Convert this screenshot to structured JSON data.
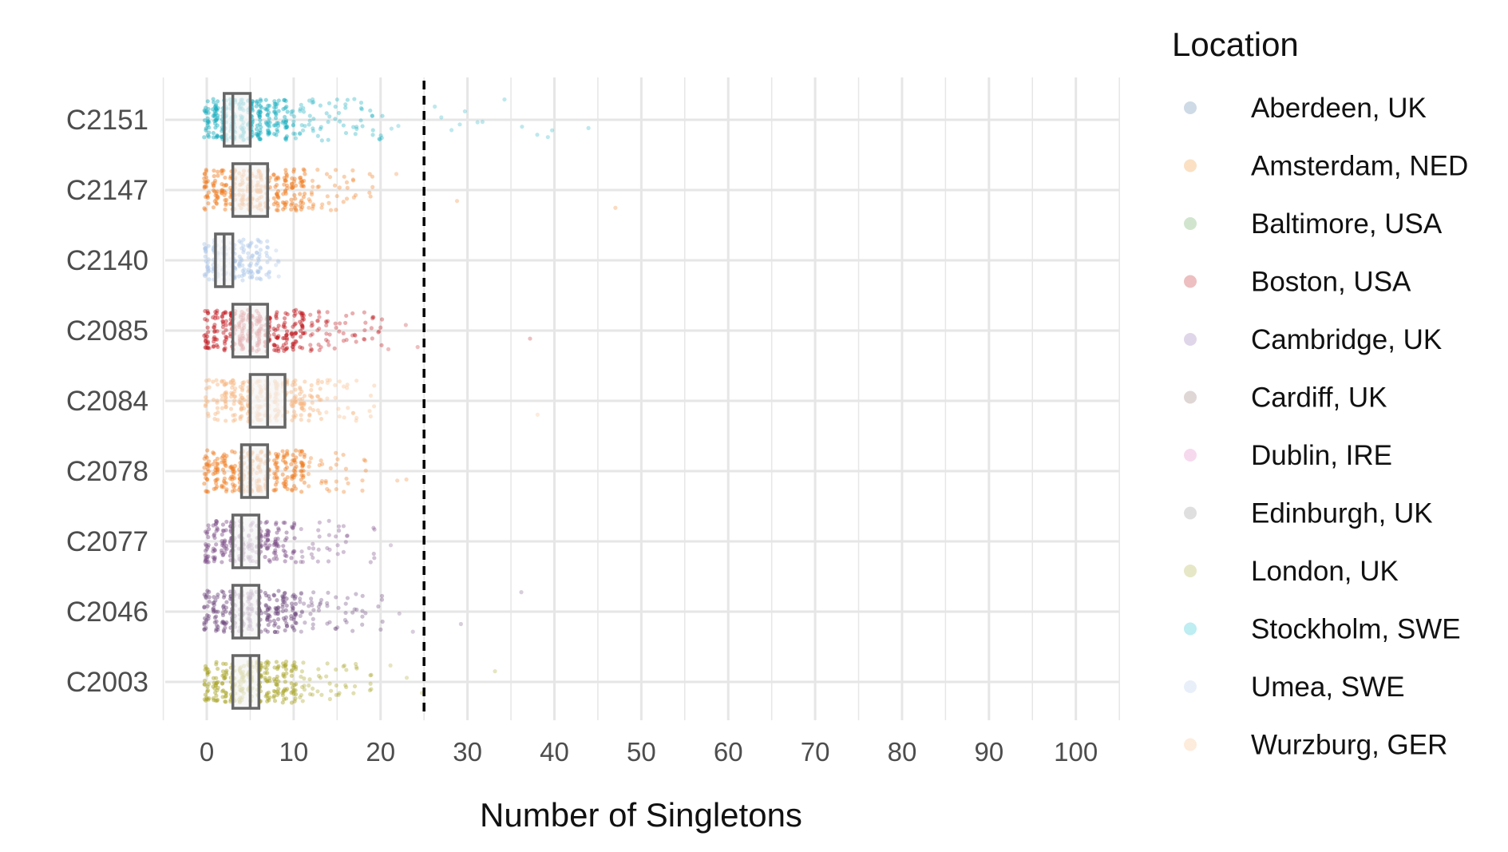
{
  "chart_data": {
    "type": "scatter",
    "subtype": "jittered strip plot with boxplots",
    "xlabel": "Number of Singletons",
    "ylabel": "",
    "xlim": [
      -5,
      105
    ],
    "x_ticks": [
      0,
      10,
      20,
      30,
      40,
      50,
      60,
      70,
      80,
      90,
      100
    ],
    "threshold_line": {
      "x": 25,
      "style": "dashed",
      "color": "#000000"
    },
    "grid": true,
    "legend": {
      "title": "Location",
      "position": "right",
      "entries": [
        {
          "label": "Aberdeen, UK",
          "color": "#4e79a7"
        },
        {
          "label": "Amsterdam, NED",
          "color": "#f28e2b"
        },
        {
          "label": "Baltimore, USA",
          "color": "#59a14f"
        },
        {
          "label": "Boston, USA",
          "color": "#c0181e"
        },
        {
          "label": "Cambridge, UK",
          "color": "#8c6bb1"
        },
        {
          "label": "Cardiff, UK",
          "color": "#8c6d6d"
        },
        {
          "label": "Dublin, IRE",
          "color": "#e377c2"
        },
        {
          "label": "Edinburgh, UK",
          "color": "#8c8c8c"
        },
        {
          "label": "London, UK",
          "color": "#a6a832"
        },
        {
          "label": "Stockholm, SWE",
          "color": "#17becf"
        },
        {
          "label": "Umea, SWE",
          "color": "#aec7e8"
        },
        {
          "label": "Wurzburg, GER",
          "color": "#f7b680"
        }
      ]
    },
    "groups": [
      {
        "name": "C2151",
        "color": "#17aebf",
        "box": {
          "q1": 2,
          "median": 3,
          "q3": 5
        },
        "points": [
          0,
          0,
          1,
          1,
          1,
          2,
          2,
          2,
          3,
          3,
          3,
          3,
          4,
          4,
          4,
          5,
          5,
          5,
          6,
          6,
          6,
          7,
          7,
          8,
          8,
          9,
          9,
          10,
          10,
          11,
          11,
          12,
          12,
          13,
          14,
          15,
          16,
          17,
          18,
          19,
          20,
          21,
          22,
          26,
          27,
          28,
          29,
          30,
          31,
          32,
          34,
          36,
          38,
          39,
          40,
          44
        ]
      },
      {
        "name": "C2147",
        "color": "#f07a1c",
        "box": {
          "q1": 3,
          "median": 5,
          "q3": 7
        },
        "points": [
          0,
          0,
          1,
          1,
          2,
          2,
          3,
          3,
          3,
          4,
          4,
          5,
          5,
          5,
          6,
          6,
          6,
          7,
          7,
          8,
          8,
          9,
          9,
          10,
          10,
          11,
          11,
          12,
          12,
          13,
          14,
          15,
          16,
          17,
          19,
          22,
          29,
          47
        ]
      },
      {
        "name": "C2140",
        "color": "#aec7e8",
        "box": {
          "q1": 1,
          "median": 2,
          "q3": 3
        },
        "points": [
          0,
          0,
          1,
          1,
          1,
          2,
          2,
          2,
          3,
          3,
          3,
          4,
          4,
          5,
          5,
          6,
          6,
          7,
          8
        ]
      },
      {
        "name": "C2085",
        "color": "#c0181e",
        "box": {
          "q1": 3,
          "median": 5,
          "q3": 7
        },
        "points": [
          0,
          0,
          1,
          1,
          2,
          2,
          3,
          3,
          3,
          4,
          4,
          4,
          5,
          5,
          5,
          6,
          6,
          6,
          7,
          7,
          7,
          8,
          8,
          9,
          9,
          10,
          10,
          11,
          11,
          12,
          12,
          13,
          13,
          14,
          14,
          15,
          16,
          17,
          18,
          19,
          20,
          21,
          23,
          24,
          37
        ]
      },
      {
        "name": "C2084",
        "color": "#f7b680",
        "box": {
          "q1": 5,
          "median": 7,
          "q3": 9
        },
        "points": [
          0,
          1,
          2,
          2,
          3,
          3,
          4,
          4,
          5,
          5,
          5,
          6,
          6,
          6,
          7,
          7,
          7,
          8,
          8,
          8,
          9,
          9,
          10,
          10,
          11,
          11,
          12,
          13,
          14,
          15,
          16,
          17,
          19,
          38
        ]
      },
      {
        "name": "C2078",
        "color": "#f07a1c",
        "box": {
          "q1": 4,
          "median": 5,
          "q3": 7
        },
        "points": [
          0,
          0,
          1,
          1,
          2,
          2,
          3,
          3,
          4,
          4,
          4,
          5,
          5,
          5,
          6,
          6,
          6,
          7,
          7,
          8,
          8,
          9,
          9,
          10,
          10,
          11,
          11,
          12,
          13,
          14,
          15,
          16,
          18,
          22,
          23
        ]
      },
      {
        "name": "C2077",
        "color": "#7f4f8a",
        "box": {
          "q1": 3,
          "median": 4,
          "q3": 6
        },
        "points": [
          0,
          0,
          1,
          1,
          2,
          2,
          3,
          3,
          3,
          4,
          4,
          4,
          5,
          5,
          6,
          6,
          7,
          7,
          8,
          8,
          9,
          10,
          11,
          12,
          13,
          14,
          15,
          16,
          19,
          21
        ]
      },
      {
        "name": "C2046",
        "color": "#6e4a7e",
        "box": {
          "q1": 3,
          "median": 4,
          "q3": 6
        },
        "points": [
          0,
          0,
          1,
          1,
          2,
          2,
          3,
          3,
          3,
          4,
          4,
          4,
          5,
          5,
          5,
          6,
          6,
          7,
          7,
          8,
          8,
          9,
          9,
          10,
          10,
          11,
          11,
          12,
          12,
          13,
          14,
          15,
          16,
          17,
          18,
          20,
          22,
          24,
          29,
          36
        ]
      },
      {
        "name": "C2003",
        "color": "#a6a222",
        "box": {
          "q1": 3,
          "median": 5,
          "q3": 6
        },
        "points": [
          0,
          0,
          1,
          1,
          2,
          2,
          3,
          3,
          3,
          4,
          4,
          4,
          5,
          5,
          5,
          6,
          6,
          6,
          7,
          7,
          8,
          8,
          9,
          9,
          10,
          10,
          11,
          11,
          12,
          13,
          14,
          15,
          16,
          17,
          19,
          21,
          23,
          25,
          33
        ]
      }
    ]
  }
}
